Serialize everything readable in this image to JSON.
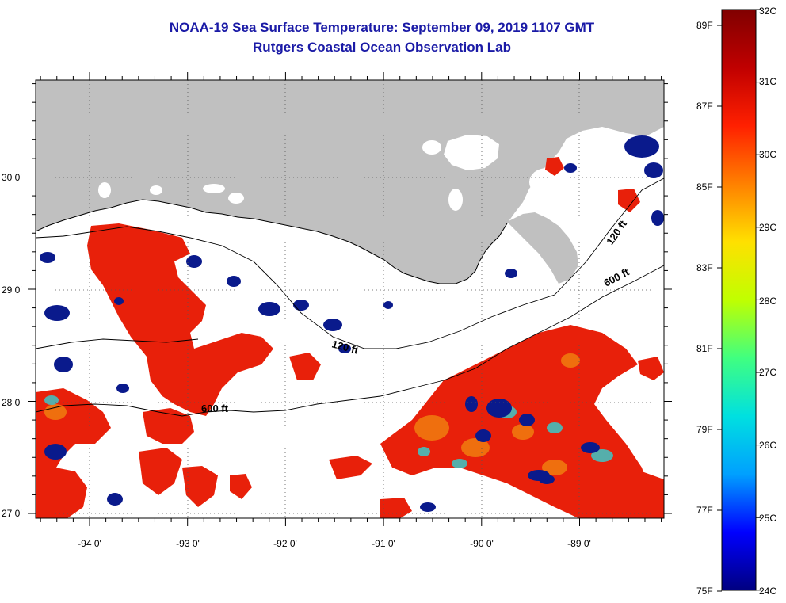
{
  "header": {
    "title": "NOAA-19 Sea Surface Temperature:  September 09, 2019 1107 GMT",
    "subtitle": "Rutgers Coastal Ocean Observation Lab"
  },
  "map": {
    "lon_labels": [
      "-94 0'",
      "-93 0'",
      "-92 0'",
      "-91 0'",
      "-90 0'",
      "-89 0'"
    ],
    "lat_labels": [
      "30 0'",
      "29 0'",
      "28 0'",
      "27 0'"
    ],
    "contours": [
      "120 ft",
      "600 ft",
      "120 ft",
      "600 ft"
    ],
    "colors": {
      "land": "#c0c0c0",
      "ocean_nodata": "#ffffff",
      "warm": "#e8200a",
      "cool": "#0a1a8c"
    }
  },
  "colorbar": {
    "fahrenheit": [
      "89F",
      "87F",
      "85F",
      "83F",
      "81F",
      "79F",
      "77F",
      "75F"
    ],
    "celsius": [
      "32C",
      "31C",
      "30C",
      "29C",
      "28C",
      "27C",
      "26C",
      "25C",
      "24C"
    ],
    "stops": [
      "#000080",
      "#0000ff",
      "#00a0ff",
      "#00e0e0",
      "#40ff80",
      "#c0ff00",
      "#ffe000",
      "#ff8000",
      "#ff2000",
      "#c00000",
      "#800000"
    ]
  }
}
